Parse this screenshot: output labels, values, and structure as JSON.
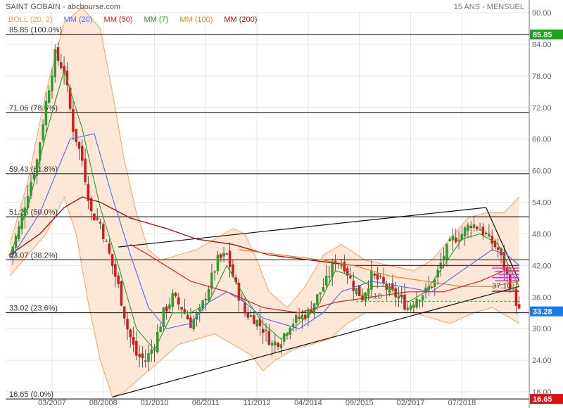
{
  "header": {
    "title": "SAINT GOBAIN - abcbourse.com",
    "period": "15 ANS - MENSUEL"
  },
  "legend": [
    {
      "label": "BOLL (20, 2)",
      "color": "#f4a460"
    },
    {
      "label": "MM (20)",
      "color": "#4a6cf7"
    },
    {
      "label": "MM (50)",
      "color": "#d62020"
    },
    {
      "label": "MM (7)",
      "color": "#2a9a2a"
    },
    {
      "label": "MM (100)",
      "color": "#f08020"
    },
    {
      "label": "MM (200)",
      "color": "#a01818"
    }
  ],
  "chart_data": {
    "type": "candlestick",
    "title": "SAINT GOBAIN - abcbourse.com",
    "ylim": [
      16,
      90
    ],
    "y_ticks": [
      18,
      24,
      30,
      36,
      42,
      48,
      54,
      60,
      66,
      72,
      78,
      84,
      90
    ],
    "x_tick_labels": [
      "03/2007",
      "08/2008",
      "01/2010",
      "06/2011",
      "11/2012",
      "04/2014",
      "09/2015",
      "02/2017",
      "07/2018"
    ],
    "fib_levels": [
      {
        "label": "85.85 (100.0%)",
        "value": 85.85
      },
      {
        "label": "71.06 (78.6%)",
        "value": 71.06
      },
      {
        "label": "59.43 (61.8%)",
        "value": 59.43
      },
      {
        "label": "51.25 (50.0%)",
        "value": 51.25
      },
      {
        "label": "43.07 (38.2%)",
        "value": 43.07
      },
      {
        "label": "33.02 (23.6%)",
        "value": 33.02
      },
      {
        "label": "16.65 (0.0%)",
        "value": 16.65
      }
    ],
    "price_tags": [
      {
        "text": "85.85",
        "value": 85.85,
        "color": "#1aa31a"
      },
      {
        "text": "33.28",
        "value": 33.28,
        "color": "#1a7be8"
      },
      {
        "text": "16.65",
        "value": 16.65,
        "color": "#e01010"
      }
    ],
    "annotations": [
      {
        "text": "37.10",
        "value": 37.1
      },
      {
        "text": "35.18",
        "value": 35.18
      }
    ],
    "close_anchors": [
      [
        0,
        44
      ],
      [
        3,
        49
      ],
      [
        6,
        56
      ],
      [
        9,
        62
      ],
      [
        12,
        73
      ],
      [
        15,
        82
      ],
      [
        18,
        79
      ],
      [
        21,
        68
      ],
      [
        24,
        62
      ],
      [
        27,
        52
      ],
      [
        30,
        50
      ],
      [
        33,
        44
      ],
      [
        36,
        38
      ],
      [
        39,
        30
      ],
      [
        42,
        25
      ],
      [
        45,
        24
      ],
      [
        48,
        27
      ],
      [
        51,
        33
      ],
      [
        54,
        36
      ],
      [
        57,
        34
      ],
      [
        60,
        31
      ],
      [
        63,
        33
      ],
      [
        66,
        38
      ],
      [
        69,
        43
      ],
      [
        72,
        44
      ],
      [
        75,
        38
      ],
      [
        78,
        33
      ],
      [
        81,
        32
      ],
      [
        84,
        30
      ],
      [
        87,
        27
      ],
      [
        90,
        28
      ],
      [
        93,
        31
      ],
      [
        96,
        32
      ],
      [
        99,
        33
      ],
      [
        102,
        36
      ],
      [
        105,
        39
      ],
      [
        108,
        43
      ],
      [
        111,
        42
      ],
      [
        114,
        38
      ],
      [
        117,
        36
      ],
      [
        120,
        40
      ],
      [
        123,
        39
      ],
      [
        126,
        37
      ],
      [
        129,
        36
      ],
      [
        132,
        34
      ],
      [
        135,
        36
      ],
      [
        138,
        37
      ],
      [
        141,
        39
      ],
      [
        144,
        44
      ],
      [
        147,
        47
      ],
      [
        150,
        48
      ],
      [
        153,
        50
      ],
      [
        156,
        49
      ],
      [
        159,
        47
      ],
      [
        162,
        45
      ],
      [
        165,
        40
      ],
      [
        167,
        37
      ],
      [
        169,
        33.28
      ]
    ],
    "mm7_anchors": [
      [
        0,
        44
      ],
      [
        6,
        53
      ],
      [
        12,
        67
      ],
      [
        18,
        79
      ],
      [
        24,
        68
      ],
      [
        30,
        53
      ],
      [
        36,
        42
      ],
      [
        42,
        30
      ],
      [
        48,
        26
      ],
      [
        54,
        33
      ],
      [
        60,
        33
      ],
      [
        66,
        35
      ],
      [
        72,
        42
      ],
      [
        78,
        36
      ],
      [
        84,
        31
      ],
      [
        90,
        28
      ],
      [
        96,
        31
      ],
      [
        102,
        34
      ],
      [
        108,
        41
      ],
      [
        114,
        40
      ],
      [
        120,
        38
      ],
      [
        126,
        38
      ],
      [
        132,
        35
      ],
      [
        138,
        37
      ],
      [
        144,
        42
      ],
      [
        150,
        47
      ],
      [
        156,
        48
      ],
      [
        162,
        46
      ],
      [
        169,
        38
      ]
    ],
    "mm20_anchors": [
      [
        0,
        43
      ],
      [
        10,
        52
      ],
      [
        20,
        66
      ],
      [
        28,
        67
      ],
      [
        34,
        55
      ],
      [
        40,
        44
      ],
      [
        46,
        34
      ],
      [
        52,
        30
      ],
      [
        60,
        31
      ],
      [
        66,
        35
      ],
      [
        72,
        37
      ],
      [
        78,
        35
      ],
      [
        84,
        32
      ],
      [
        90,
        31
      ],
      [
        96,
        30
      ],
      [
        104,
        33
      ],
      [
        110,
        37
      ],
      [
        120,
        39
      ],
      [
        130,
        38
      ],
      [
        140,
        37
      ],
      [
        150,
        41
      ],
      [
        160,
        45
      ],
      [
        165,
        44
      ],
      [
        169,
        42
      ]
    ],
    "mm50_anchors": [
      [
        40,
        46
      ],
      [
        46,
        44
      ],
      [
        60,
        39
      ],
      [
        72,
        37
      ],
      [
        84,
        34
      ],
      [
        96,
        33
      ],
      [
        108,
        35
      ],
      [
        120,
        36
      ],
      [
        132,
        37
      ],
      [
        144,
        37
      ],
      [
        156,
        39
      ],
      [
        164,
        41
      ],
      [
        169,
        41
      ]
    ],
    "mm100_anchors": [
      [
        76,
        45
      ],
      [
        90,
        44
      ],
      [
        104,
        43
      ],
      [
        114,
        42
      ],
      [
        126,
        40
      ],
      [
        138,
        39
      ],
      [
        150,
        38
      ],
      [
        160,
        38
      ],
      [
        169,
        39
      ]
    ],
    "mm200_anchors": [
      [
        0,
        44
      ],
      [
        10,
        48
      ],
      [
        18,
        53
      ],
      [
        24,
        55
      ],
      [
        30,
        54
      ],
      [
        40,
        51
      ],
      [
        52,
        49
      ],
      [
        62,
        47
      ],
      [
        74,
        46
      ],
      [
        86,
        44
      ],
      [
        100,
        43
      ],
      [
        114,
        42
      ],
      [
        130,
        42
      ],
      [
        146,
        42
      ],
      [
        160,
        42
      ],
      [
        169,
        42
      ]
    ],
    "boll_upper_anchors": [
      [
        0,
        46
      ],
      [
        6,
        58
      ],
      [
        12,
        75
      ],
      [
        18,
        88
      ],
      [
        24,
        91
      ],
      [
        30,
        87
      ],
      [
        34,
        75
      ],
      [
        38,
        62
      ],
      [
        42,
        52
      ],
      [
        46,
        45
      ],
      [
        50,
        43
      ],
      [
        56,
        44
      ],
      [
        62,
        45
      ],
      [
        68,
        47
      ],
      [
        74,
        49
      ],
      [
        78,
        48
      ],
      [
        82,
        43
      ],
      [
        86,
        37
      ],
      [
        92,
        34
      ],
      [
        98,
        38
      ],
      [
        104,
        44
      ],
      [
        110,
        46
      ],
      [
        118,
        43
      ],
      [
        126,
        42
      ],
      [
        134,
        41
      ],
      [
        140,
        43
      ],
      [
        146,
        47
      ],
      [
        152,
        51
      ],
      [
        158,
        52
      ],
      [
        164,
        52
      ],
      [
        169,
        55
      ]
    ],
    "boll_lower_anchors": [
      [
        0,
        40
      ],
      [
        6,
        44
      ],
      [
        12,
        48
      ],
      [
        18,
        55
      ],
      [
        22,
        48
      ],
      [
        26,
        35
      ],
      [
        30,
        24
      ],
      [
        34,
        17
      ],
      [
        38,
        18
      ],
      [
        44,
        21
      ],
      [
        50,
        24
      ],
      [
        56,
        27
      ],
      [
        62,
        28
      ],
      [
        68,
        29
      ],
      [
        74,
        27
      ],
      [
        80,
        25
      ],
      [
        84,
        22
      ],
      [
        88,
        24
      ],
      [
        94,
        26
      ],
      [
        100,
        27
      ],
      [
        106,
        28
      ],
      [
        112,
        31
      ],
      [
        118,
        33
      ],
      [
        126,
        33
      ],
      [
        134,
        33
      ],
      [
        140,
        32
      ],
      [
        146,
        31
      ],
      [
        154,
        33
      ],
      [
        160,
        34
      ],
      [
        169,
        31
      ]
    ]
  }
}
